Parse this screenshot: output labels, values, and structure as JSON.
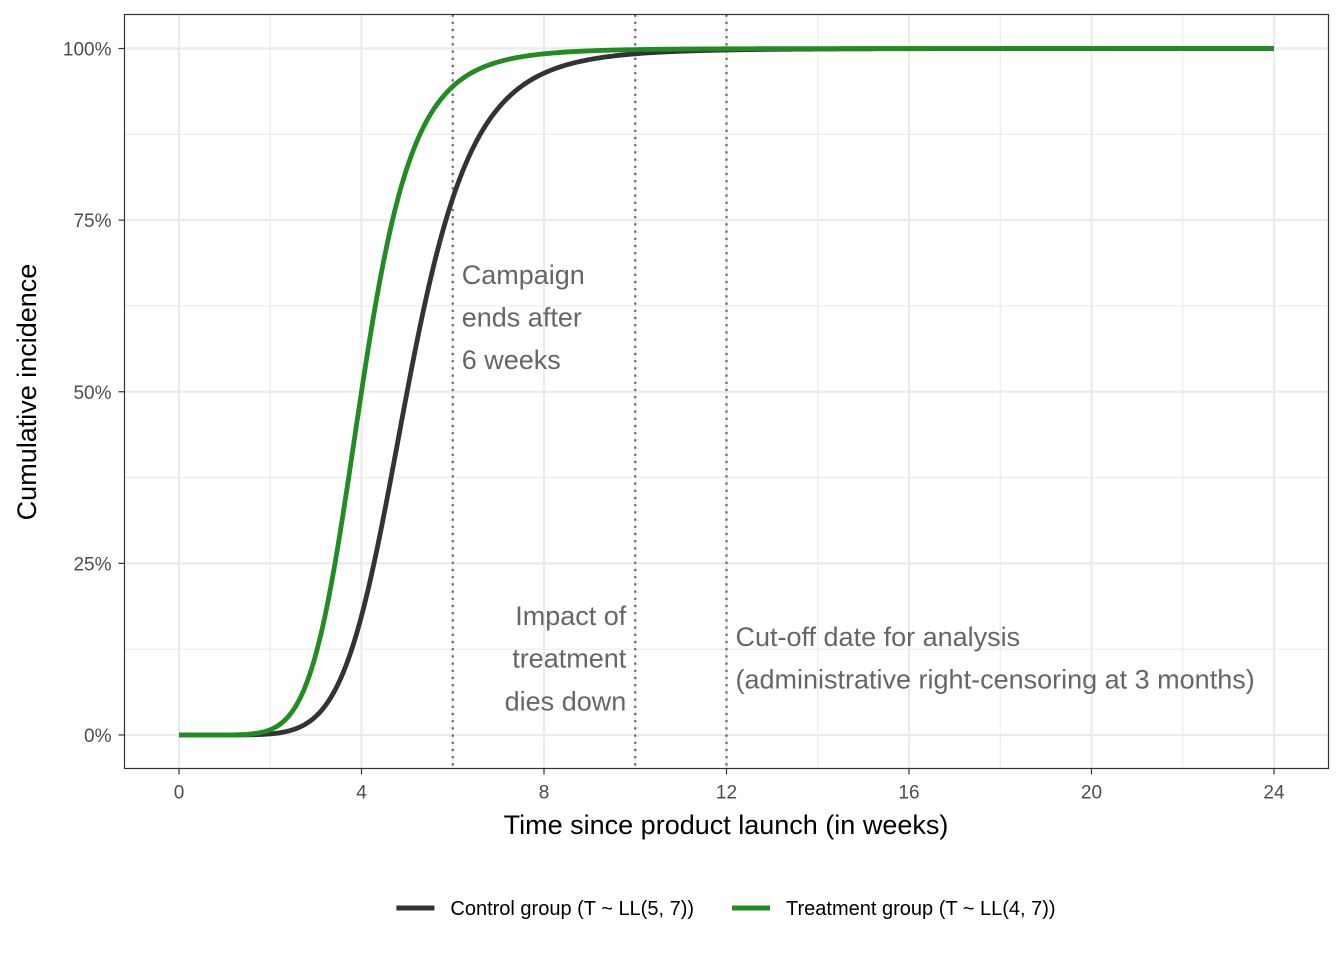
{
  "chart_data": {
    "type": "line",
    "xlabel": "Time since product launch (in weeks)",
    "ylabel": "Cumulative incidence",
    "xlim": [
      0,
      24
    ],
    "ylim": [
      0,
      1
    ],
    "x_ticks": [
      0,
      4,
      8,
      12,
      16,
      20,
      24
    ],
    "x_tick_labels": [
      "0",
      "4",
      "8",
      "12",
      "16",
      "20",
      "24"
    ],
    "y_ticks": [
      0,
      0.25,
      0.5,
      0.75,
      1
    ],
    "y_tick_labels": [
      "0%",
      "25%",
      "50%",
      "75%",
      "100%"
    ],
    "grid": true,
    "legend_position": "bottom",
    "series": [
      {
        "name": "Control group (T ~ LL(5, 7))",
        "color": "#333333",
        "distribution": "log-logistic",
        "scale": 5,
        "shape": 7,
        "x": [
          0,
          1,
          2,
          2.5,
          3,
          3.5,
          4,
          4.5,
          5,
          5.5,
          6,
          6.5,
          7,
          7.5,
          8,
          9,
          10,
          11,
          12,
          14,
          16,
          20,
          24
        ],
        "y": [
          0,
          0.0001,
          0.0016,
          0.0078,
          0.0272,
          0.0761,
          0.1733,
          0.3235,
          0.5,
          0.6639,
          0.7855,
          0.8621,
          0.9086,
          0.9385,
          0.9598,
          0.9839,
          0.9937,
          0.9959,
          0.9978,
          0.9992,
          0.9997,
          0.9999,
          1.0
        ]
      },
      {
        "name": "Treatment group (T ~ LL(4, 7))",
        "color": "#228B22",
        "distribution": "log-logistic",
        "scale": 4,
        "shape": 7,
        "x": [
          0,
          1,
          2,
          2.5,
          3,
          3.5,
          4,
          4.5,
          5,
          5.5,
          6,
          6.5,
          7,
          7.5,
          8,
          9,
          10,
          11,
          12,
          14,
          16,
          20,
          24
        ],
        "y": [
          0,
          0.0001,
          0.0078,
          0.0325,
          0.1178,
          0.2912,
          0.5,
          0.6975,
          0.8266,
          0.9009,
          0.9446,
          0.9672,
          0.9804,
          0.9879,
          0.9922,
          0.9965,
          0.9984,
          0.9992,
          0.9995,
          0.9998,
          0.9999,
          1.0,
          1.0
        ]
      }
    ],
    "vlines": [
      {
        "x": 6,
        "label_lines": [
          "Campaign",
          "ends after",
          "6 weeks"
        ],
        "label_side": "right",
        "label_y": [
          0.657,
          0.595,
          0.533
        ]
      },
      {
        "x": 10,
        "label_lines": [
          "Impact of",
          "treatment",
          "dies down"
        ],
        "label_side": "left",
        "label_y": [
          0.16,
          0.098,
          0.036
        ]
      },
      {
        "x": 12,
        "label_lines": [
          "Cut-off date for analysis",
          "(administrative right-censoring at 3 months)"
        ],
        "label_side": "right",
        "label_y": [
          0.13,
          0.068
        ]
      }
    ]
  }
}
